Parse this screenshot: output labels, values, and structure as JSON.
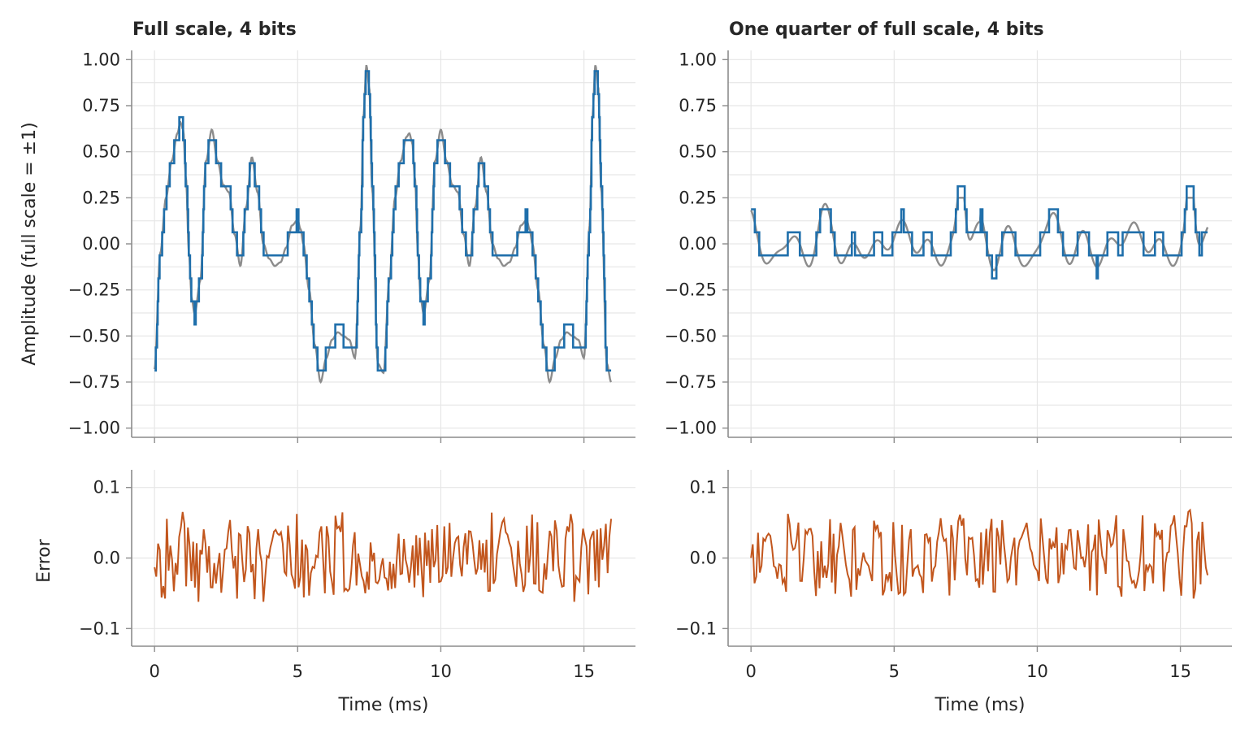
{
  "figure": {
    "colors": {
      "original": "#8c8c8c",
      "quantized": "#1f6fab",
      "error": "#c2561d",
      "grid": "#e6e6e6",
      "axis": "#8c8c8c",
      "text": "#262626"
    }
  },
  "chart_data": [
    {
      "type": "line",
      "title": "Full scale, 4 bits",
      "xlabel": "",
      "ylabel": "Amplitude (full scale = ±1)",
      "xlim": [
        -0.8,
        16.8
      ],
      "ylim": [
        -1.05,
        1.05
      ],
      "x_ticks": [
        0,
        5,
        10,
        15
      ],
      "y_ticks": [
        "1.00",
        "0.75",
        "0.50",
        "0.25",
        "0.00",
        "−0.25",
        "−0.50",
        "−0.75",
        "−1.00"
      ],
      "y_tick_values": [
        1.0,
        0.75,
        0.5,
        0.25,
        0.0,
        -0.25,
        -0.5,
        -0.75,
        -1.0
      ],
      "y_minor_grid_step": 0.125,
      "grid": true,
      "show_x_tick_labels": false,
      "synth": {
        "amplitude": 1.0,
        "step": 0.125,
        "cycle_ms": 8
      },
      "series": [
        {
          "role": "original",
          "x": [
            0.0,
            0.2,
            0.4,
            0.6,
            0.8,
            0.9,
            1.0,
            1.1,
            1.2,
            1.3,
            1.4,
            1.6,
            1.8,
            2.0,
            2.2,
            2.4,
            2.6,
            2.8,
            3.0,
            3.2,
            3.4,
            3.6,
            3.8,
            4.0,
            4.2,
            4.4,
            4.6,
            4.8,
            5.0,
            5.1,
            5.2,
            5.4,
            5.6,
            5.8,
            6.0,
            6.2,
            6.4,
            6.6,
            6.8,
            7.0,
            7.2,
            7.3,
            7.4,
            7.5,
            7.6,
            7.8,
            8.0,
            8.2,
            8.4,
            8.6,
            8.8,
            8.9,
            9.0,
            9.1,
            9.2,
            9.3,
            9.4,
            9.6,
            9.8,
            10.0,
            10.2,
            10.4,
            10.6,
            10.8,
            11.0,
            11.2,
            11.4,
            11.6,
            11.8,
            12.0,
            12.2,
            12.4,
            12.6,
            12.8,
            13.0,
            13.1,
            13.2,
            13.4,
            13.6,
            13.8,
            14.0,
            14.2,
            14.4,
            14.6,
            14.8,
            15.0,
            15.2,
            15.3,
            15.4,
            15.5,
            15.6,
            15.8,
            15.95
          ],
          "y": [
            -0.68,
            -0.05,
            0.25,
            0.45,
            0.6,
            0.66,
            0.62,
            0.35,
            -0.05,
            -0.3,
            -0.38,
            -0.2,
            0.45,
            0.62,
            0.45,
            0.32,
            0.28,
            0.05,
            -0.12,
            0.2,
            0.47,
            0.28,
            0.0,
            -0.08,
            -0.12,
            -0.1,
            -0.02,
            0.1,
            0.13,
            0.08,
            0.0,
            -0.25,
            -0.55,
            -0.75,
            -0.62,
            -0.52,
            -0.48,
            -0.5,
            -0.52,
            -0.62,
            0.1,
            0.7,
            0.97,
            0.85,
            0.3,
            -0.65,
            -0.7,
            -0.2,
            0.25,
            0.45,
            0.58,
            0.6,
            0.55,
            0.35,
            -0.05,
            -0.3,
            -0.38,
            -0.2,
            0.45,
            0.62,
            0.45,
            0.32,
            0.28,
            0.05,
            -0.12,
            0.2,
            0.47,
            0.28,
            0.0,
            -0.08,
            -0.12,
            -0.1,
            -0.02,
            0.1,
            0.13,
            0.08,
            0.0,
            -0.25,
            -0.55,
            -0.75,
            -0.62,
            -0.52,
            -0.48,
            -0.5,
            -0.52,
            -0.62,
            0.1,
            0.7,
            0.97,
            0.85,
            0.3,
            -0.65,
            -0.75
          ]
        }
      ]
    },
    {
      "type": "line",
      "title": "",
      "xlabel": "Time (ms)",
      "ylabel": "Error",
      "xlim": [
        -0.8,
        16.8
      ],
      "ylim": [
        -0.125,
        0.125
      ],
      "x_ticks": [
        0,
        5,
        10,
        15
      ],
      "y_ticks": [
        "0.1",
        "0.0",
        "−0.1"
      ],
      "y_tick_values": [
        0.1,
        0.0,
        -0.1
      ],
      "grid": true,
      "show_x_tick_labels": true,
      "derived_from": 0
    },
    {
      "type": "line",
      "title": "One quarter of full scale, 4 bits",
      "xlabel": "",
      "ylabel": "",
      "xlim": [
        -0.8,
        16.8
      ],
      "ylim": [
        -1.05,
        1.05
      ],
      "x_ticks": [
        0,
        5,
        10,
        15
      ],
      "y_ticks": [
        "1.00",
        "0.75",
        "0.50",
        "0.25",
        "0.00",
        "−0.25",
        "−0.50",
        "−0.75",
        "−1.00"
      ],
      "y_tick_values": [
        1.0,
        0.75,
        0.5,
        0.25,
        0.0,
        -0.25,
        -0.5,
        -0.75,
        -1.0
      ],
      "y_minor_grid_step": 0.125,
      "grid": true,
      "show_x_tick_labels": false,
      "synth": {
        "amplitude": 0.25,
        "step": 0.125,
        "cycle_ms": 8
      }
    },
    {
      "type": "line",
      "title": "",
      "xlabel": "Time (ms)",
      "ylabel": "",
      "xlim": [
        -0.8,
        16.8
      ],
      "ylim": [
        -0.125,
        0.125
      ],
      "x_ticks": [
        0,
        5,
        10,
        15
      ],
      "y_ticks": [
        "0.1",
        "0.0",
        "−0.1"
      ],
      "y_tick_values": [
        0.1,
        0.0,
        -0.1
      ],
      "grid": true,
      "show_x_tick_labels": true,
      "derived_from": 2
    }
  ]
}
